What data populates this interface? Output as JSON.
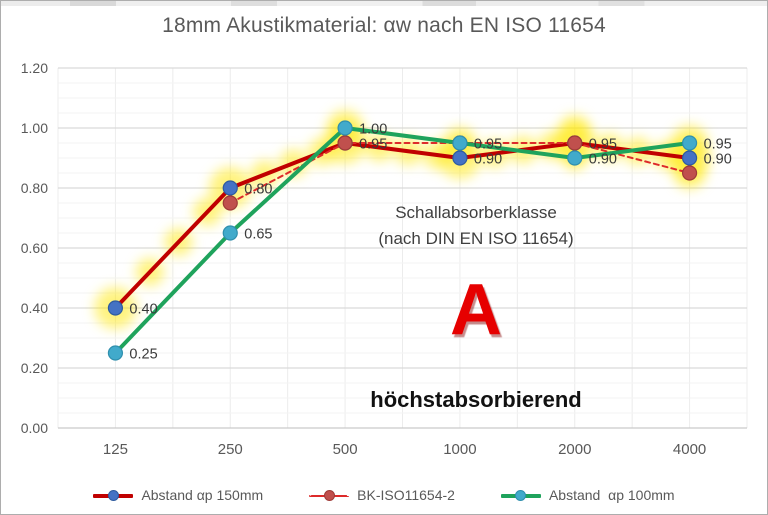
{
  "chart_data": {
    "type": "line",
    "title": "18mm Akustikmaterial: αw nach EN ISO 11654",
    "categories": [
      "125",
      "250",
      "500",
      "1000",
      "2000",
      "4000"
    ],
    "y_ticks": [
      "1.20",
      "1.00",
      "0.80",
      "0.60",
      "0.40",
      "0.20",
      "0.00"
    ],
    "ylim": [
      0,
      1.2
    ],
    "grid": true,
    "legend_position": "bottom",
    "highlight_color": "#FFE800",
    "series": [
      {
        "name": "Abstand αp 150mm",
        "values": [
          0.4,
          0.8,
          0.95,
          0.9,
          0.95,
          0.9
        ],
        "labels": [
          "0.40",
          "0.80",
          "0.95",
          "0.90",
          "0.95",
          "0.90"
        ],
        "line_color": "#C00000",
        "marker_color": "#4472C4",
        "marker_stroke": "#2E5B9F",
        "dash": false,
        "width": 4
      },
      {
        "name": "BK-ISO11654-2",
        "values": [
          null,
          0.75,
          0.95,
          0.95,
          0.95,
          0.85
        ],
        "labels": [
          "",
          "",
          "",
          "",
          "",
          ""
        ],
        "line_color": "#DD2A2A",
        "marker_color": "#C0504D",
        "marker_stroke": "#9E3B38",
        "dash": true,
        "width": 2
      },
      {
        "name": "Abstand  αp 100mm",
        "values": [
          0.25,
          0.65,
          1.0,
          0.95,
          0.9,
          0.95
        ],
        "labels": [
          "0.25",
          "0.65",
          "1.00",
          "0.95",
          "0.90",
          "0.95"
        ],
        "line_color": "#1FA35C",
        "marker_color": "#41AACB",
        "marker_stroke": "#2F8FAD",
        "dash": false,
        "width": 4
      }
    ],
    "annotations": {
      "klasse_line1": "Schallabsorberklasse",
      "klasse_line2": "(nach DIN EN ISO 11654)",
      "grade_letter": "A",
      "grade_desc": "höchstabsorbierend"
    }
  }
}
